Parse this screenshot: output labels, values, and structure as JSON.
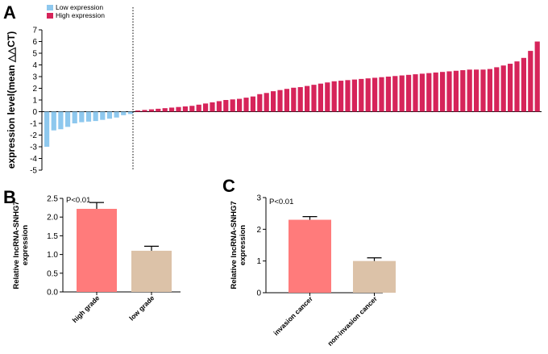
{
  "chart_data": [
    {
      "panel": "A",
      "type": "bar",
      "ylabel": "expression level(mean △△CT)",
      "ylim": [
        -5,
        7
      ],
      "yticks": [
        -5,
        -4,
        -3,
        -2,
        -1,
        0,
        1,
        2,
        3,
        4,
        5,
        6,
        7
      ],
      "legend": [
        {
          "name": "Low expression",
          "color": "#8ec8ee"
        },
        {
          "name": "High expression",
          "color": "#d6245a"
        }
      ],
      "legend_position": "top-left",
      "series": [
        {
          "name": "Low expression",
          "color": "#8ec8ee",
          "values": [
            -3.0,
            -1.6,
            -1.5,
            -1.3,
            -1.0,
            -0.9,
            -0.85,
            -0.8,
            -0.7,
            -0.6,
            -0.5,
            -0.3,
            -0.2
          ]
        },
        {
          "name": "High expression",
          "color": "#d6245a",
          "values": [
            0.1,
            0.15,
            0.2,
            0.25,
            0.3,
            0.35,
            0.4,
            0.45,
            0.5,
            0.6,
            0.7,
            0.8,
            0.9,
            1.0,
            1.05,
            1.1,
            1.2,
            1.3,
            1.5,
            1.6,
            1.75,
            1.85,
            1.95,
            2.05,
            2.1,
            2.2,
            2.3,
            2.4,
            2.5,
            2.6,
            2.65,
            2.7,
            2.75,
            2.8,
            2.85,
            2.9,
            2.95,
            3.0,
            3.05,
            3.1,
            3.15,
            3.2,
            3.25,
            3.3,
            3.35,
            3.4,
            3.45,
            3.5,
            3.55,
            3.6,
            3.6,
            3.6,
            3.65,
            3.8,
            3.95,
            4.1,
            4.3,
            4.6,
            5.2,
            6.0
          ]
        }
      ]
    },
    {
      "panel": "B",
      "type": "bar",
      "ylabel": "Relative lncRNA-SNHG7\nexpression",
      "ylim": [
        0,
        2.5
      ],
      "yticks": [
        "0.0",
        "0.5",
        "1.0",
        "1.5",
        "2.0",
        "2.5"
      ],
      "annotation": "P<0.01",
      "categories": [
        "high grade",
        "low grade"
      ],
      "values": [
        2.22,
        1.1
      ],
      "errors": [
        0.17,
        0.12
      ],
      "colors": [
        "#ff7b7b",
        "#dcc2a8"
      ]
    },
    {
      "panel": "C",
      "type": "bar",
      "ylabel": "Relative lncRNA-SNHG7\nexpression",
      "ylim": [
        0,
        3
      ],
      "yticks": [
        "0",
        "1",
        "2",
        "3"
      ],
      "annotation": "P<0.01",
      "categories": [
        "invasion cancer",
        "non-invasion cancer"
      ],
      "values": [
        2.3,
        1.0
      ],
      "errors": [
        0.1,
        0.1
      ],
      "colors": [
        "#ff7b7b",
        "#dcc2a8"
      ]
    }
  ]
}
